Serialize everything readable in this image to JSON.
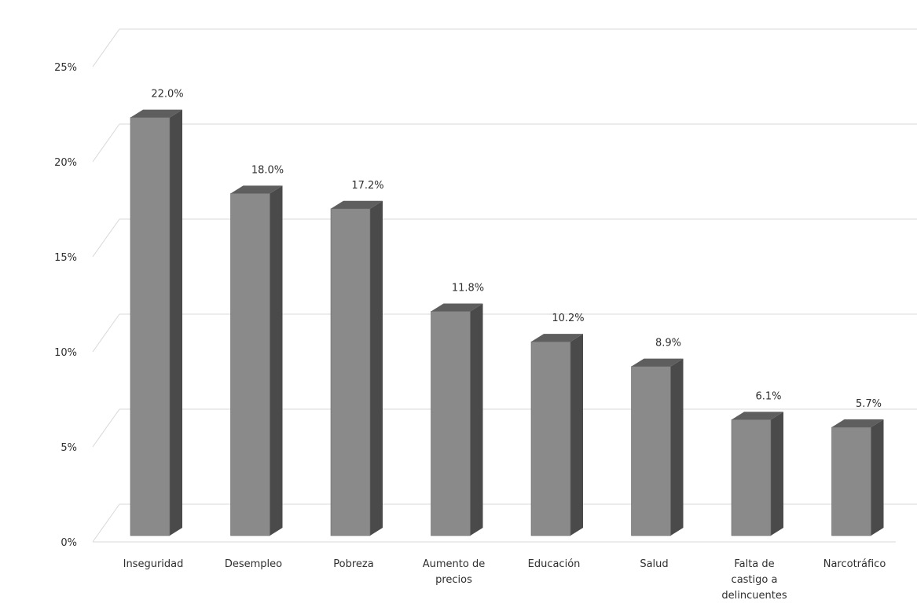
{
  "chart_data": {
    "type": "bar",
    "categories": [
      [
        "Inseguridad"
      ],
      [
        "Desempleo"
      ],
      [
        "Pobreza"
      ],
      [
        "Aumento de",
        "precios"
      ],
      [
        "Educación"
      ],
      [
        "Salud"
      ],
      [
        "Falta de",
        "castigo a",
        "delincuentes"
      ],
      [
        "Narcotráfico"
      ]
    ],
    "values": [
      22.0,
      18.0,
      17.2,
      11.8,
      10.2,
      8.9,
      6.1,
      5.7
    ],
    "data_labels": [
      "22.0%",
      "18.0%",
      "17.2%",
      "11.8%",
      "10.2%",
      "8.9%",
      "6.1%",
      "5.7%"
    ],
    "y_ticks": [
      {
        "value": 0,
        "label": "0%"
      },
      {
        "value": 5,
        "label": "5%"
      },
      {
        "value": 10,
        "label": "10%"
      },
      {
        "value": 15,
        "label": "15%"
      },
      {
        "value": 20,
        "label": "20%"
      },
      {
        "value": 25,
        "label": "25%"
      }
    ],
    "ylim": [
      0,
      25
    ],
    "grid": true,
    "style": "3d-column",
    "title": "",
    "xlabel": "",
    "ylabel": "",
    "colors": {
      "bar_front": "#8a8a8a",
      "bar_side": "#4a4a4a",
      "bar_top": "#5e5e5e",
      "grid": "#d8d8d8",
      "text": "#2f2f2f"
    }
  }
}
